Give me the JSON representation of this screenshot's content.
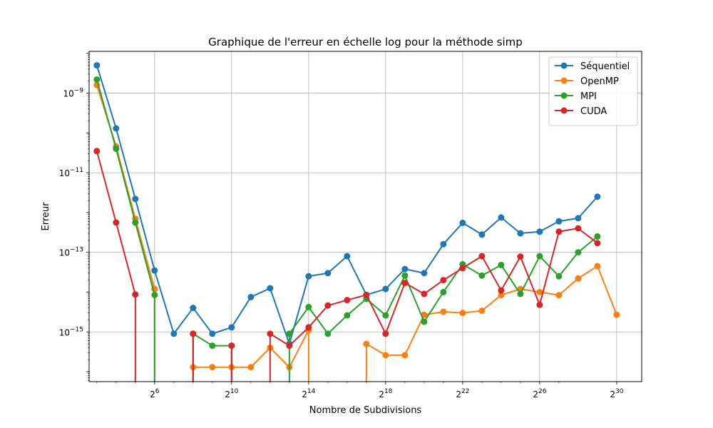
{
  "chart_data": {
    "type": "line",
    "title": "Graphique de l'erreur en échelle log pour la méthode simp",
    "xlabel": "Nombre de Subdivisions",
    "ylabel": "Erreur",
    "x_scale": "log2",
    "y_scale": "log10",
    "x_tick_exponents": [
      6,
      10,
      14,
      18,
      22,
      26,
      30
    ],
    "y_tick_exponents": [
      -15,
      -13,
      -11,
      -9
    ],
    "x_exponent_range": [
      2.6,
      31.3
    ],
    "y_exponent_range": [
      -16.25,
      -7.95
    ],
    "grid": true,
    "legend_position": "top-right",
    "x_exponents": [
      3,
      4,
      5,
      6,
      7,
      8,
      9,
      10,
      11,
      12,
      13,
      14,
      15,
      16,
      17,
      18,
      19,
      20,
      21,
      22,
      23,
      24,
      25,
      26,
      27
    ],
    "series": [
      {
        "name": "Séquentiel",
        "color": "#1f77b4",
        "points": [
          [
            3,
            5e-09
          ],
          [
            4,
            1.3e-10
          ],
          [
            5,
            2.2e-12
          ],
          [
            6,
            3.5e-14
          ],
          [
            7,
            9e-16
          ],
          [
            8,
            4e-15
          ],
          [
            9,
            9e-16
          ],
          [
            10,
            1.3e-15
          ],
          [
            11,
            7.5e-15
          ],
          [
            12,
            1.25e-14
          ],
          [
            13,
            5e-16
          ],
          [
            14,
            2.5e-14
          ],
          [
            15,
            3e-14
          ],
          [
            16,
            8e-14
          ],
          [
            17,
            8.5e-15
          ],
          [
            18,
            1.2e-14
          ],
          [
            19,
            3.8e-14
          ],
          [
            20,
            3e-14
          ],
          [
            21,
            1.6e-13
          ],
          [
            22,
            5.5e-13
          ],
          [
            23,
            2.8e-13
          ],
          [
            24,
            7.5e-13
          ],
          [
            25,
            3e-13
          ],
          [
            26,
            3.3e-13
          ],
          [
            27,
            6e-13
          ],
          [
            28,
            7.2e-13
          ],
          [
            29,
            2.5e-12
          ]
        ]
      },
      {
        "name": "OpenMP",
        "color": "#ff7f0e",
        "points": [
          [
            3,
            1.6e-09
          ],
          [
            4,
            4.6e-11
          ],
          [
            5,
            7e-13
          ],
          [
            6,
            1.2e-14
          ],
          [
            7,
            null
          ],
          [
            8,
            1.3e-16
          ],
          [
            9,
            1.3e-16
          ],
          [
            10,
            1.3e-16
          ],
          [
            11,
            1.3e-16
          ],
          [
            12,
            4e-16
          ],
          [
            13,
            1.3e-16
          ],
          [
            14,
            1.1e-15
          ],
          [
            15,
            null
          ],
          [
            16,
            null
          ],
          [
            17,
            5e-16
          ],
          [
            18,
            2.6e-16
          ],
          [
            19,
            2.6e-16
          ],
          [
            20,
            2.7e-15
          ],
          [
            21,
            3.2e-15
          ],
          [
            22,
            3e-15
          ],
          [
            23,
            3.4e-15
          ],
          [
            24,
            8.4e-15
          ],
          [
            25,
            1.2e-14
          ],
          [
            26,
            1e-14
          ],
          [
            27,
            8.4e-15
          ],
          [
            28,
            2.2e-14
          ],
          [
            29,
            4.5e-14
          ],
          [
            30,
            2.7e-15
          ]
        ]
      },
      {
        "name": "MPI",
        "color": "#2ca02c",
        "points": [
          [
            3,
            2.2e-09
          ],
          [
            4,
            4e-11
          ],
          [
            5,
            5.6e-13
          ],
          [
            6,
            8.5e-15
          ],
          [
            7,
            null
          ],
          [
            8,
            9e-16
          ],
          [
            9,
            4.5e-16
          ],
          [
            10,
            4.5e-16
          ],
          [
            11,
            null
          ],
          [
            12,
            null
          ],
          [
            13,
            9e-16
          ],
          [
            14,
            4.2e-15
          ],
          [
            15,
            9e-16
          ],
          [
            16,
            2.6e-15
          ],
          [
            17,
            6.8e-15
          ],
          [
            18,
            2.6e-15
          ],
          [
            19,
            2.6e-14
          ],
          [
            20,
            1.8e-15
          ],
          [
            21,
            1e-14
          ],
          [
            22,
            5e-14
          ],
          [
            23,
            2.6e-14
          ],
          [
            24,
            4.8e-14
          ],
          [
            25,
            9e-15
          ],
          [
            26,
            8e-14
          ],
          [
            27,
            2.5e-14
          ],
          [
            28,
            1e-13
          ],
          [
            29,
            2.5e-13
          ]
        ]
      },
      {
        "name": "CUDA",
        "color": "#d62728",
        "points": [
          [
            3,
            3.5e-11
          ],
          [
            4,
            5.6e-13
          ],
          [
            5,
            8.7e-15
          ],
          [
            6,
            null
          ],
          [
            7,
            null
          ],
          [
            8,
            9e-16
          ],
          [
            9,
            null
          ],
          [
            10,
            4.5e-16
          ],
          [
            11,
            null
          ],
          [
            12,
            9e-16
          ],
          [
            13,
            4.5e-16
          ],
          [
            14,
            1.3e-15
          ],
          [
            15,
            4.6e-15
          ],
          [
            16,
            6.3e-15
          ],
          [
            17,
            8.5e-15
          ],
          [
            18,
            9e-16
          ],
          [
            19,
            1.7e-14
          ],
          [
            20,
            9e-15
          ],
          [
            21,
            2e-14
          ],
          [
            22,
            4e-14
          ],
          [
            23,
            8e-14
          ],
          [
            24,
            1.1e-14
          ],
          [
            25,
            7.8e-14
          ],
          [
            26,
            4.8e-15
          ],
          [
            27,
            3.3e-13
          ],
          [
            28,
            4e-13
          ],
          [
            29,
            1.7e-13
          ]
        ]
      }
    ]
  }
}
